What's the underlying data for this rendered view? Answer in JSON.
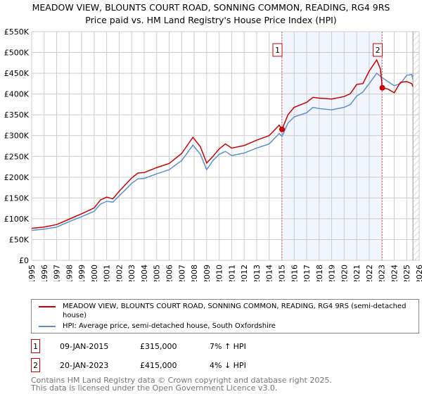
{
  "chart_data": {
    "type": "line",
    "title": "MEADOW VIEW, BLOUNTS COURT ROAD, SONNING COMMON, READING, RG4 9RS",
    "subtitle": "Price paid vs. HM Land Registry's House Price Index (HPI)",
    "xlim": [
      1995,
      2026
    ],
    "ylim": [
      0,
      550000
    ],
    "x_ticks": [
      "1995",
      "1996",
      "1997",
      "1998",
      "1999",
      "2000",
      "2001",
      "2002",
      "2003",
      "2004",
      "2005",
      "2006",
      "2007",
      "2008",
      "2009",
      "2010",
      "2011",
      "2012",
      "2013",
      "2014",
      "2015",
      "2016",
      "2017",
      "2018",
      "2019",
      "2020",
      "2021",
      "2022",
      "2023",
      "2024",
      "2025",
      "2026"
    ],
    "y_ticks": [
      "£0",
      "£50K",
      "£100K",
      "£150K",
      "£200K",
      "£250K",
      "£300K",
      "£350K",
      "£400K",
      "£450K",
      "£500K",
      "£550K"
    ],
    "grid": true,
    "series": [
      {
        "name": "MEADOW VIEW, BLOUNTS COURT ROAD, SONNING COMMON, READING, RG4 9RS (semi-detached house)",
        "color": "#cc0000",
        "x": [
          1995,
          1996,
          1997,
          1998,
          1999,
          2000,
          2000.5,
          2001,
          2001.5,
          2002,
          2003,
          2003.5,
          2004,
          2005,
          2006,
          2007,
          2007.9,
          2008.5,
          2009,
          2009.5,
          2010,
          2010.5,
          2011,
          2012,
          2013,
          2014,
          2014.8,
          2015.03,
          2015.5,
          2016,
          2017,
          2017.5,
          2018,
          2019,
          2020,
          2020.5,
          2021,
          2021.5,
          2022,
          2022.6,
          2022.9,
          2023.05,
          2023.5,
          2024,
          2024.5,
          2025,
          2025.4,
          2025.5
        ],
        "y": [
          77000,
          80000,
          86000,
          99000,
          112000,
          126000,
          145000,
          152000,
          148000,
          166000,
          198000,
          210000,
          211000,
          223000,
          233000,
          257000,
          296000,
          273000,
          234000,
          250000,
          268000,
          280000,
          270000,
          276000,
          289000,
          300000,
          325000,
          315000,
          350000,
          368000,
          380000,
          392000,
          390000,
          388000,
          394000,
          401000,
          423000,
          425000,
          455000,
          482000,
          460000,
          415000,
          412000,
          403000,
          428000,
          430000,
          425000,
          418000
        ]
      },
      {
        "name": "HPI: Average price, semi-detached house, South Oxfordshire",
        "color": "#5b8fd0",
        "x": [
          1995,
          1996,
          1997,
          1998,
          1999,
          2000,
          2000.5,
          2001,
          2001.5,
          2002,
          2003,
          2003.5,
          2004,
          2005,
          2006,
          2007,
          2007.9,
          2008.5,
          2009,
          2009.5,
          2010,
          2010.5,
          2011,
          2012,
          2013,
          2014,
          2014.8,
          2015.03,
          2015.5,
          2016,
          2017,
          2017.5,
          2018,
          2019,
          2020,
          2020.5,
          2021,
          2021.5,
          2022,
          2022.6,
          2023,
          2023.5,
          2024,
          2024.5,
          2025,
          2025.4,
          2025.5
        ],
        "y": [
          72000,
          75000,
          80000,
          93000,
          105000,
          118000,
          135000,
          142000,
          140000,
          155000,
          185000,
          196000,
          197000,
          208000,
          218000,
          240000,
          277000,
          255000,
          218000,
          240000,
          255000,
          262000,
          252000,
          258000,
          270000,
          280000,
          305000,
          298000,
          330000,
          345000,
          355000,
          368000,
          365000,
          362000,
          368000,
          375000,
          395000,
          405000,
          425000,
          450000,
          440000,
          430000,
          420000,
          425000,
          445000,
          447000,
          435000
        ]
      }
    ],
    "sales": [
      {
        "label": "1",
        "x": 2015.03,
        "y": 315000
      },
      {
        "label": "2",
        "x": 2023.05,
        "y": 415000
      }
    ],
    "shaded_range": [
      2015.03,
      2023.05
    ],
    "hatched_from": 2025.5
  },
  "legend": {
    "red": "MEADOW VIEW, BLOUNTS COURT ROAD, SONNING COMMON, READING, RG4 9RS (semi-detached house)",
    "blue": "HPI: Average price, semi-detached house, South Oxfordshire"
  },
  "table": [
    {
      "n": "1",
      "date": "09-JAN-2015",
      "price": "£315,000",
      "hpi": "7% ↑ HPI"
    },
    {
      "n": "2",
      "date": "20-JAN-2023",
      "price": "£415,000",
      "hpi": "4% ↓ HPI"
    }
  ],
  "footer": [
    "Contains HM Land Registry data © Crown copyright and database right 2025.",
    "This data is licensed under the Open Government Licence v3.0."
  ]
}
